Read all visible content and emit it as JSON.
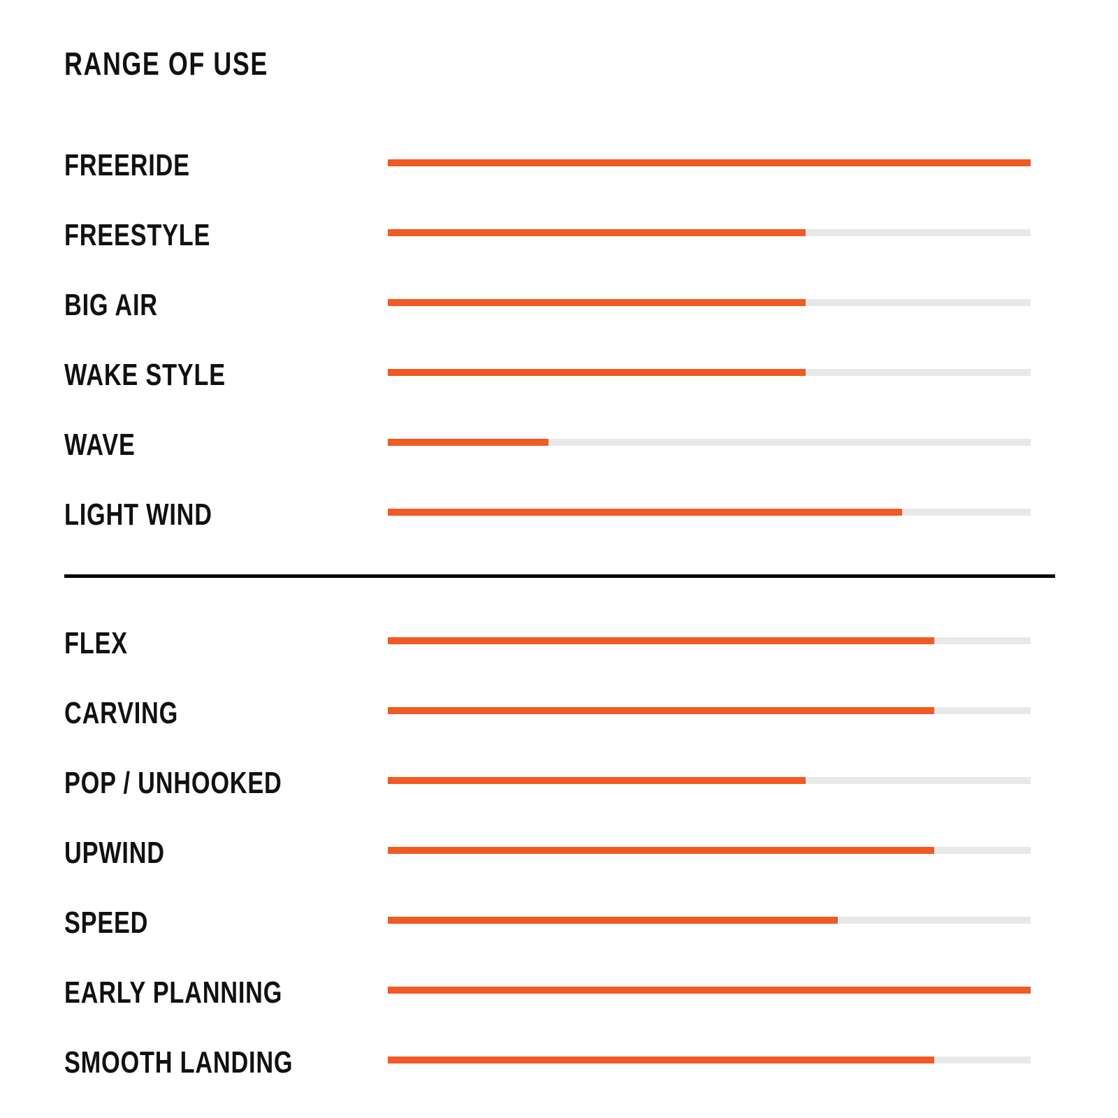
{
  "chart_data": {
    "type": "bar",
    "title": "RANGE OF USE",
    "orientation": "horizontal",
    "xlim": [
      0,
      100
    ],
    "colors": {
      "fill": "#f15a22",
      "track": "#e8e8e8",
      "divider": "#000000"
    },
    "groups": [
      {
        "categories": [
          "FREERIDE",
          "FREESTYLE",
          "BIG AIR",
          "WAKE STYLE",
          "WAVE",
          "LIGHT WIND"
        ],
        "values": [
          100,
          65,
          65,
          65,
          25,
          80
        ]
      },
      {
        "categories": [
          "FLEX",
          "CARVING",
          "POP / UNHOOKED",
          "UPWIND",
          "SPEED",
          "EARLY PLANNING",
          "SMOOTH LANDING"
        ],
        "values": [
          85,
          85,
          65,
          85,
          70,
          100,
          85
        ]
      }
    ]
  }
}
